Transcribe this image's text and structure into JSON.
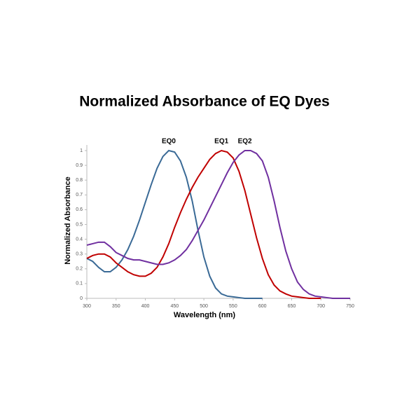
{
  "chart_data": {
    "type": "line",
    "title": "Normalized Absorbance of EQ Dyes",
    "x_label": "Wavelength (nm)",
    "y_label": "Normalized Absorbance",
    "x": [
      300,
      310,
      320,
      330,
      340,
      350,
      360,
      370,
      380,
      390,
      400,
      410,
      420,
      430,
      440,
      450,
      460,
      470,
      480,
      490,
      500,
      510,
      520,
      530,
      540,
      550,
      560,
      570,
      580,
      590,
      600,
      610,
      620,
      630,
      640,
      650,
      660,
      670,
      680,
      690,
      700,
      710,
      720,
      730,
      740,
      750
    ],
    "series": [
      {
        "name": "EQ0",
        "color": "#3a6a96",
        "values": [
          0.27,
          0.25,
          0.21,
          0.18,
          0.18,
          0.21,
          0.26,
          0.33,
          0.42,
          0.53,
          0.65,
          0.77,
          0.88,
          0.96,
          1.0,
          0.99,
          0.93,
          0.82,
          0.66,
          0.46,
          0.28,
          0.15,
          0.07,
          0.03,
          0.015,
          0.01,
          0.005,
          0,
          0,
          0,
          0,
          null,
          null,
          null,
          null,
          null,
          null,
          null,
          null,
          null,
          null,
          null,
          null,
          null,
          null,
          null
        ]
      },
      {
        "name": "EQ1",
        "color": "#c00000",
        "values": [
          0.27,
          0.29,
          0.3,
          0.3,
          0.28,
          0.24,
          0.21,
          0.18,
          0.16,
          0.15,
          0.15,
          0.17,
          0.21,
          0.28,
          0.37,
          0.48,
          0.58,
          0.67,
          0.75,
          0.82,
          0.88,
          0.94,
          0.98,
          1.0,
          0.99,
          0.95,
          0.86,
          0.73,
          0.57,
          0.41,
          0.27,
          0.16,
          0.09,
          0.05,
          0.03,
          0.015,
          0.01,
          0.005,
          0,
          0,
          0,
          null,
          null,
          null,
          null,
          null
        ]
      },
      {
        "name": "EQ2",
        "color": "#7030a0",
        "values": [
          0.36,
          0.37,
          0.38,
          0.38,
          0.35,
          0.31,
          0.29,
          0.27,
          0.26,
          0.26,
          0.25,
          0.24,
          0.23,
          0.23,
          0.24,
          0.26,
          0.29,
          0.33,
          0.39,
          0.46,
          0.53,
          0.61,
          0.69,
          0.77,
          0.85,
          0.92,
          0.97,
          1.0,
          1.0,
          0.98,
          0.93,
          0.82,
          0.66,
          0.48,
          0.32,
          0.2,
          0.11,
          0.06,
          0.03,
          0.015,
          0.01,
          0.005,
          0,
          0,
          0,
          0
        ]
      }
    ],
    "xlim": [
      300,
      750
    ],
    "xticks": [
      300,
      350,
      400,
      450,
      500,
      550,
      600,
      650,
      700,
      750
    ],
    "ylim": [
      0,
      1
    ],
    "yticks": [
      0,
      0.1,
      0.2,
      0.3,
      0.4,
      0.5,
      0.6,
      0.7,
      0.8,
      0.9,
      1
    ]
  }
}
